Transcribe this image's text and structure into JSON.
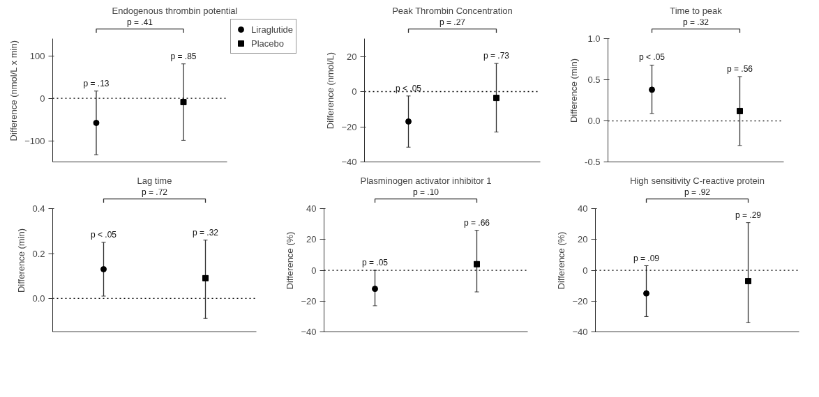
{
  "chart_data": [
    {
      "type": "scatter",
      "title": "Endogenous thrombin potential",
      "ylabel": "Difference (nmol/L x min)",
      "categories": [
        null,
        null
      ],
      "ylim": [
        -150,
        140
      ],
      "yticks": [
        -100,
        0,
        100
      ],
      "grid": false,
      "legend": "top right",
      "tick_labels": "y",
      "ref_lines": [
        {
          "axis": "y",
          "value": 0,
          "line_style": "dotted",
          "color": "#000000"
        }
      ],
      "annotations": [
        "p = .41",
        "p = .13",
        "p = .85"
      ],
      "series": [
        {
          "name": "Liraglutide",
          "color": "#000000",
          "marker": "circle",
          "values": [
            -58,
            null
          ],
          "errors": [
            [
              -133,
              17
            ],
            null
          ]
        },
        {
          "name": "Placebo",
          "color": "#000000",
          "marker": "square",
          "values": [
            null,
            -9
          ],
          "errors": [
            null,
            [
              -99,
              81
            ]
          ]
        }
      ]
    },
    {
      "type": "scatter",
      "title": "Peak Thrombin Concentration",
      "ylabel": "Difference (nmol/L)",
      "categories": [
        null,
        null
      ],
      "ylim": [
        -40,
        30
      ],
      "yticks": [
        -40,
        -20,
        0,
        20
      ],
      "grid": false,
      "tick_labels": "y",
      "ref_lines": [
        {
          "axis": "y",
          "value": 0,
          "line_style": "dotted",
          "color": "#000000"
        }
      ],
      "annotations": [
        "p = .27",
        "p < .05",
        "p = .73"
      ],
      "series": [
        {
          "color": "#000000",
          "marker": "circle",
          "values": [
            -17,
            null
          ],
          "errors": [
            [
              -31.6,
              -2.5
            ],
            null
          ]
        },
        {
          "color": "#000000",
          "marker": "square",
          "values": [
            null,
            -3.6
          ],
          "errors": [
            null,
            [
              -23,
              16
            ]
          ]
        }
      ]
    },
    {
      "type": "scatter",
      "title": "Time to peak",
      "ylabel": "Difference (min)",
      "categories": [
        null,
        null
      ],
      "ylim": [
        -0.5,
        1.0
      ],
      "yticks": [
        {
          "value": -0.5,
          "label": "-0.5"
        },
        {
          "value": 0,
          "label": "0.0"
        },
        {
          "value": 0.5,
          "label": "0.5"
        },
        {
          "value": 1.0,
          "label": "1.0"
        }
      ],
      "grid": false,
      "tick_labels": "y",
      "ref_lines": [
        {
          "axis": "y",
          "value": 0,
          "line_style": "dotted",
          "color": "#000000"
        }
      ],
      "annotations": [
        "p = .32",
        "p < .05",
        "p = .56"
      ],
      "series": [
        {
          "color": "#000000",
          "marker": "circle",
          "values": [
            0.38,
            null
          ],
          "errors": [
            [
              0.09,
              0.68
            ],
            null
          ]
        },
        {
          "color": "#000000",
          "marker": "square",
          "values": [
            null,
            0.12
          ],
          "errors": [
            null,
            [
              -0.3,
              0.54
            ]
          ]
        }
      ]
    },
    {
      "type": "scatter",
      "title": "Lag time",
      "ylabel": "Difference (min)",
      "categories": [
        null,
        null
      ],
      "ylim": [
        -0.15,
        0.4
      ],
      "yticks": [
        {
          "value": 0,
          "label": "0.0"
        },
        {
          "value": 0.2,
          "label": "0.2"
        },
        {
          "value": 0.4,
          "label": "0.4"
        }
      ],
      "grid": false,
      "tick_labels": "y",
      "ref_lines": [
        {
          "axis": "y",
          "value": 0,
          "line_style": "dotted",
          "color": "#000000"
        }
      ],
      "annotations": [
        "p = .72",
        "p < .05",
        "p = .32"
      ],
      "series": [
        {
          "color": "#000000",
          "marker": "circle",
          "values": [
            0.13,
            null
          ],
          "errors": [
            [
              0.01,
              0.25
            ],
            null
          ]
        },
        {
          "color": "#000000",
          "marker": "square",
          "values": [
            null,
            0.09
          ],
          "errors": [
            null,
            [
              -0.09,
              0.26
            ]
          ]
        }
      ]
    },
    {
      "type": "scatter",
      "title": "Plasminogen activator inhibitor 1",
      "ylabel": "Difference (%)",
      "categories": [
        null,
        null
      ],
      "ylim": [
        -40,
        40
      ],
      "yticks": [
        -40,
        -20,
        0,
        20,
        40
      ],
      "grid": false,
      "tick_labels": "y",
      "ref_lines": [
        {
          "axis": "y",
          "value": 0,
          "line_style": "dotted",
          "color": "#000000"
        }
      ],
      "annotations": [
        "p = .10",
        "p = .05",
        "p = .66"
      ],
      "series": [
        {
          "color": "#000000",
          "marker": "circle",
          "values": [
            -12,
            null
          ],
          "errors": [
            [
              -23,
              0
            ],
            null
          ]
        },
        {
          "color": "#000000",
          "marker": "square",
          "values": [
            null,
            4
          ],
          "errors": [
            null,
            [
              -14,
              26
            ]
          ]
        }
      ]
    },
    {
      "type": "scatter",
      "title": "High sensitivity C-reactive protein",
      "ylabel": "Difference (%)",
      "categories": [
        null,
        null
      ],
      "ylim": [
        -40,
        40
      ],
      "yticks": [
        -40,
        -20,
        0,
        20,
        40
      ],
      "grid": false,
      "tick_labels": "y",
      "ref_lines": [
        {
          "axis": "y",
          "value": 0,
          "line_style": "dotted",
          "color": "#000000"
        }
      ],
      "annotations": [
        "p = .92",
        "p = .09",
        "p = .29"
      ],
      "series": [
        {
          "color": "#000000",
          "marker": "circle",
          "values": [
            -15,
            null
          ],
          "errors": [
            [
              -30,
              3
            ],
            null
          ]
        },
        {
          "color": "#000000",
          "marker": "square",
          "values": [
            null,
            -7
          ],
          "errors": [
            null,
            [
              -34,
              31
            ]
          ]
        }
      ]
    }
  ]
}
